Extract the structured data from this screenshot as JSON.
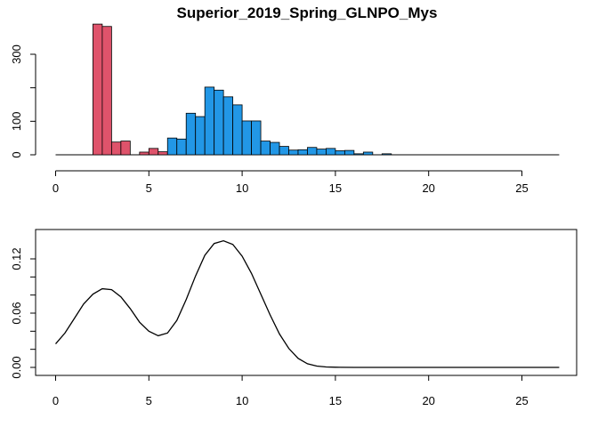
{
  "chart_data": [
    {
      "type": "bar",
      "title": "Superior_2019_Spring_GLNPO_Mys",
      "xlabel": "",
      "ylabel": "",
      "xlim": [
        0,
        27
      ],
      "ylim": [
        0,
        400
      ],
      "x_ticks": [
        "0",
        "5",
        "10",
        "15",
        "20",
        "25"
      ],
      "y_ticks": [
        "0",
        "100",
        "300"
      ],
      "grid": false,
      "bin_width": 0.5,
      "colors": {
        "red": "#DF536B",
        "blue": "#2297E6",
        "outline": "#000000"
      },
      "bins": [
        {
          "x0": 2.0,
          "value": 390,
          "color": "red"
        },
        {
          "x0": 2.5,
          "value": 383,
          "color": "red"
        },
        {
          "x0": 3.0,
          "value": 38,
          "color": "red"
        },
        {
          "x0": 3.5,
          "value": 41,
          "color": "red"
        },
        {
          "x0": 4.0,
          "value": 0,
          "color": "red"
        },
        {
          "x0": 4.5,
          "value": 8,
          "color": "red"
        },
        {
          "x0": 5.0,
          "value": 19,
          "color": "red"
        },
        {
          "x0": 5.5,
          "value": 9,
          "color": "red"
        },
        {
          "x0": 6.0,
          "value": 50,
          "color": "blue"
        },
        {
          "x0": 6.5,
          "value": 47,
          "color": "blue"
        },
        {
          "x0": 7.0,
          "value": 124,
          "color": "blue"
        },
        {
          "x0": 7.5,
          "value": 114,
          "color": "blue"
        },
        {
          "x0": 8.0,
          "value": 202,
          "color": "blue"
        },
        {
          "x0": 8.5,
          "value": 193,
          "color": "blue"
        },
        {
          "x0": 9.0,
          "value": 173,
          "color": "blue"
        },
        {
          "x0": 9.5,
          "value": 149,
          "color": "blue"
        },
        {
          "x0": 10.0,
          "value": 101,
          "color": "blue"
        },
        {
          "x0": 10.5,
          "value": 101,
          "color": "blue"
        },
        {
          "x0": 11.0,
          "value": 41,
          "color": "blue"
        },
        {
          "x0": 11.5,
          "value": 37,
          "color": "blue"
        },
        {
          "x0": 12.0,
          "value": 25,
          "color": "blue"
        },
        {
          "x0": 12.5,
          "value": 14,
          "color": "blue"
        },
        {
          "x0": 13.0,
          "value": 15,
          "color": "blue"
        },
        {
          "x0": 13.5,
          "value": 22,
          "color": "blue"
        },
        {
          "x0": 14.0,
          "value": 17,
          "color": "blue"
        },
        {
          "x0": 14.5,
          "value": 19,
          "color": "blue"
        },
        {
          "x0": 15.0,
          "value": 12,
          "color": "blue"
        },
        {
          "x0": 15.5,
          "value": 13,
          "color": "blue"
        },
        {
          "x0": 16.0,
          "value": 3,
          "color": "blue"
        },
        {
          "x0": 16.5,
          "value": 8,
          "color": "blue"
        },
        {
          "x0": 17.0,
          "value": 0,
          "color": "blue"
        },
        {
          "x0": 17.5,
          "value": 3,
          "color": "blue"
        }
      ]
    },
    {
      "type": "line",
      "title": "",
      "xlabel": "",
      "ylabel": "",
      "xlim": [
        0,
        27
      ],
      "ylim": [
        0,
        0.14
      ],
      "x_ticks": [
        "0",
        "5",
        "10",
        "15",
        "20",
        "25"
      ],
      "y_ticks": [
        "0.00",
        "0.06",
        "0.12"
      ],
      "grid": false,
      "series": [
        {
          "x": [
            0,
            0.5,
            1,
            1.5,
            2,
            2.5,
            3,
            3.5,
            4,
            4.5,
            5,
            5.5,
            6,
            6.5,
            7,
            7.5,
            8,
            8.5,
            9,
            9.5,
            10,
            10.5,
            11,
            11.5,
            12,
            12.5,
            13,
            13.5,
            14,
            14.5,
            15,
            16,
            17,
            18,
            19,
            20,
            21,
            22,
            23,
            24,
            25,
            26,
            27
          ],
          "y": [
            0.026,
            0.038,
            0.054,
            0.07,
            0.081,
            0.087,
            0.086,
            0.078,
            0.065,
            0.05,
            0.04,
            0.035,
            0.038,
            0.052,
            0.075,
            0.101,
            0.124,
            0.137,
            0.14,
            0.136,
            0.123,
            0.104,
            0.081,
            0.058,
            0.037,
            0.021,
            0.01,
            0.004,
            0.0015,
            0.0005,
            0.0002,
            0,
            0,
            0,
            0,
            0,
            0,
            0,
            0,
            0,
            0,
            0,
            0
          ]
        }
      ]
    }
  ]
}
